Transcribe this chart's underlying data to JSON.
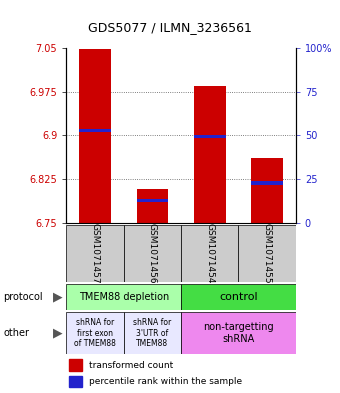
{
  "title": "GDS5077 / ILMN_3236561",
  "samples": [
    "GSM1071457",
    "GSM1071456",
    "GSM1071454",
    "GSM1071455"
  ],
  "bar_bottoms": [
    6.75,
    6.75,
    6.75,
    6.75
  ],
  "bar_tops": [
    7.048,
    6.808,
    6.984,
    6.862
  ],
  "blue_marks": [
    6.908,
    6.788,
    6.898,
    6.818
  ],
  "ylim": [
    6.75,
    7.05
  ],
  "yticks_left": [
    6.75,
    6.825,
    6.9,
    6.975,
    7.05
  ],
  "yticks_right": [
    0,
    25,
    50,
    75,
    100
  ],
  "bar_color": "#cc0000",
  "blue_color": "#2222cc",
  "bar_width": 0.55,
  "protocol_labels": [
    "TMEM88 depletion",
    "control"
  ],
  "protocol_color_depletion": "#aaffaa",
  "protocol_color_control": "#44dd44",
  "other_labels": [
    "shRNA for\nfirst exon\nof TMEM88",
    "shRNA for\n3'UTR of\nTMEM88",
    "non-targetting\nshRNA"
  ],
  "other_color_1": "#e8e8ff",
  "other_color_2": "#e8e8ff",
  "other_color_3": "#ee88ee",
  "legend_red": "transformed count",
  "legend_blue": "percentile rank within the sample",
  "grid_color": "#888888",
  "axis_label_color_left": "#cc0000",
  "axis_label_color_right": "#2222cc",
  "left_label_color": "#888888",
  "sample_bg": "#cccccc"
}
